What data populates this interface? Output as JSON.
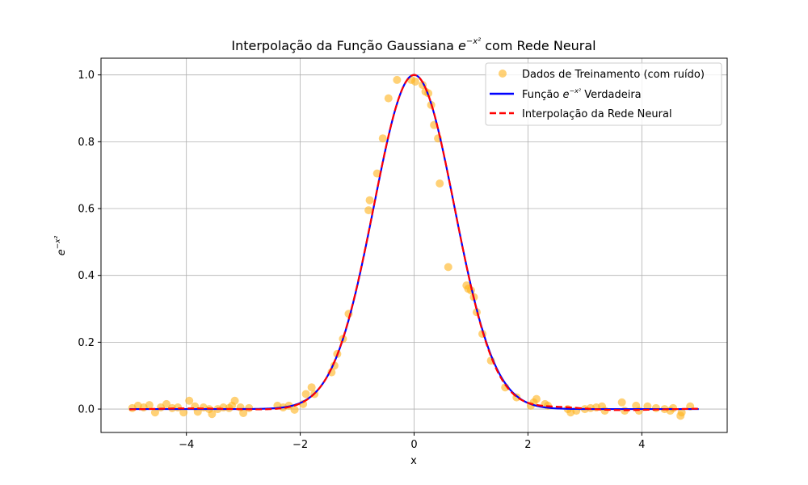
{
  "chart_data": {
    "type": "scatter",
    "title": {
      "prefix": "Interpolação da Função Gaussiana ",
      "base": "e",
      "exponent": "−x²",
      "suffix": " com Rede Neural"
    },
    "xlabel": "x",
    "ylabel": {
      "base": "e",
      "exponent": "−x²"
    },
    "xlim": [
      -5.5,
      5.5
    ],
    "ylim": [
      -0.07,
      1.05
    ],
    "xticks": [
      -4,
      -2,
      0,
      2,
      4
    ],
    "xtick_labels": [
      "−4",
      "−2",
      "0",
      "2",
      "4"
    ],
    "yticks": [
      0.0,
      0.2,
      0.4,
      0.6,
      0.8,
      1.0
    ],
    "ytick_labels": [
      "0.0",
      "0.2",
      "0.4",
      "0.6",
      "0.8",
      "1.0"
    ],
    "grid": true,
    "legend_position": "top-right",
    "colors": {
      "scatter": "#ffb31a",
      "true_curve": "#0000ff",
      "nn_curve": "#ff0000"
    },
    "legend": [
      {
        "label": "Dados de Treinamento (com ruído)"
      },
      {
        "prefix": "Função ",
        "base": "e",
        "exponent": "−x²",
        "suffix": " Verdadeira"
      },
      {
        "label": "Interpolação da Rede Neural"
      }
    ],
    "series": [
      {
        "kind": "scatter",
        "x": [
          -4.95,
          -4.85,
          -4.75,
          -4.65,
          -4.55,
          -4.45,
          -4.35,
          -4.25,
          -4.15,
          -4.05,
          -3.95,
          -3.85,
          -3.8,
          -3.7,
          -3.6,
          -3.55,
          -3.45,
          -3.35,
          -3.25,
          -3.2,
          -3.15,
          -3.05,
          -3.0,
          -2.9,
          -2.4,
          -2.3,
          -2.2,
          -2.1,
          -1.95,
          -1.9,
          -1.8,
          -1.75,
          -1.45,
          -1.4,
          -1.35,
          -1.25,
          -1.15,
          -0.8,
          -0.78,
          -0.65,
          -0.55,
          -0.45,
          -0.3,
          -0.05,
          0.02,
          0.15,
          0.2,
          0.25,
          0.3,
          0.35,
          0.42,
          0.45,
          0.6,
          0.92,
          0.95,
          1.0,
          1.05,
          1.1,
          1.2,
          1.35,
          1.6,
          1.8,
          2.05,
          2.1,
          2.15,
          2.3,
          2.35,
          2.7,
          2.75,
          2.85,
          3.0,
          3.1,
          3.2,
          3.3,
          3.35,
          3.65,
          3.7,
          3.9,
          3.95,
          4.1,
          4.25,
          4.4,
          4.5,
          4.55,
          4.68,
          4.7,
          4.85
        ],
        "y": [
          0.003,
          0.01,
          0.005,
          0.012,
          -0.01,
          0.005,
          0.015,
          0.003,
          0.005,
          -0.01,
          0.025,
          0.008,
          -0.008,
          0.005,
          0.0,
          -0.015,
          0.0,
          0.005,
          0.003,
          0.01,
          0.025,
          0.005,
          -0.012,
          0.003,
          0.01,
          0.005,
          0.01,
          -0.002,
          0.015,
          0.045,
          0.065,
          0.045,
          0.11,
          0.13,
          0.165,
          0.21,
          0.285,
          0.595,
          0.625,
          0.705,
          0.81,
          0.93,
          0.985,
          0.985,
          0.98,
          0.97,
          0.95,
          0.945,
          0.91,
          0.85,
          0.81,
          0.675,
          0.425,
          0.37,
          0.36,
          0.355,
          0.335,
          0.29,
          0.225,
          0.145,
          0.065,
          0.035,
          0.01,
          0.02,
          0.03,
          0.015,
          0.01,
          0.0,
          -0.01,
          -0.005,
          0.0,
          0.003,
          0.005,
          0.008,
          -0.005,
          0.02,
          -0.005,
          0.01,
          -0.005,
          0.008,
          0.003,
          0.0,
          -0.005,
          0.003,
          -0.02,
          -0.01,
          0.008
        ]
      },
      {
        "kind": "line",
        "function": "exp(-x^2)",
        "x_range": [
          -5,
          5
        ],
        "samples": 400
      },
      {
        "kind": "line",
        "function": "neural network approximation of exp(-x^2)",
        "x_range": [
          -5,
          5
        ],
        "samples": 400
      }
    ]
  }
}
